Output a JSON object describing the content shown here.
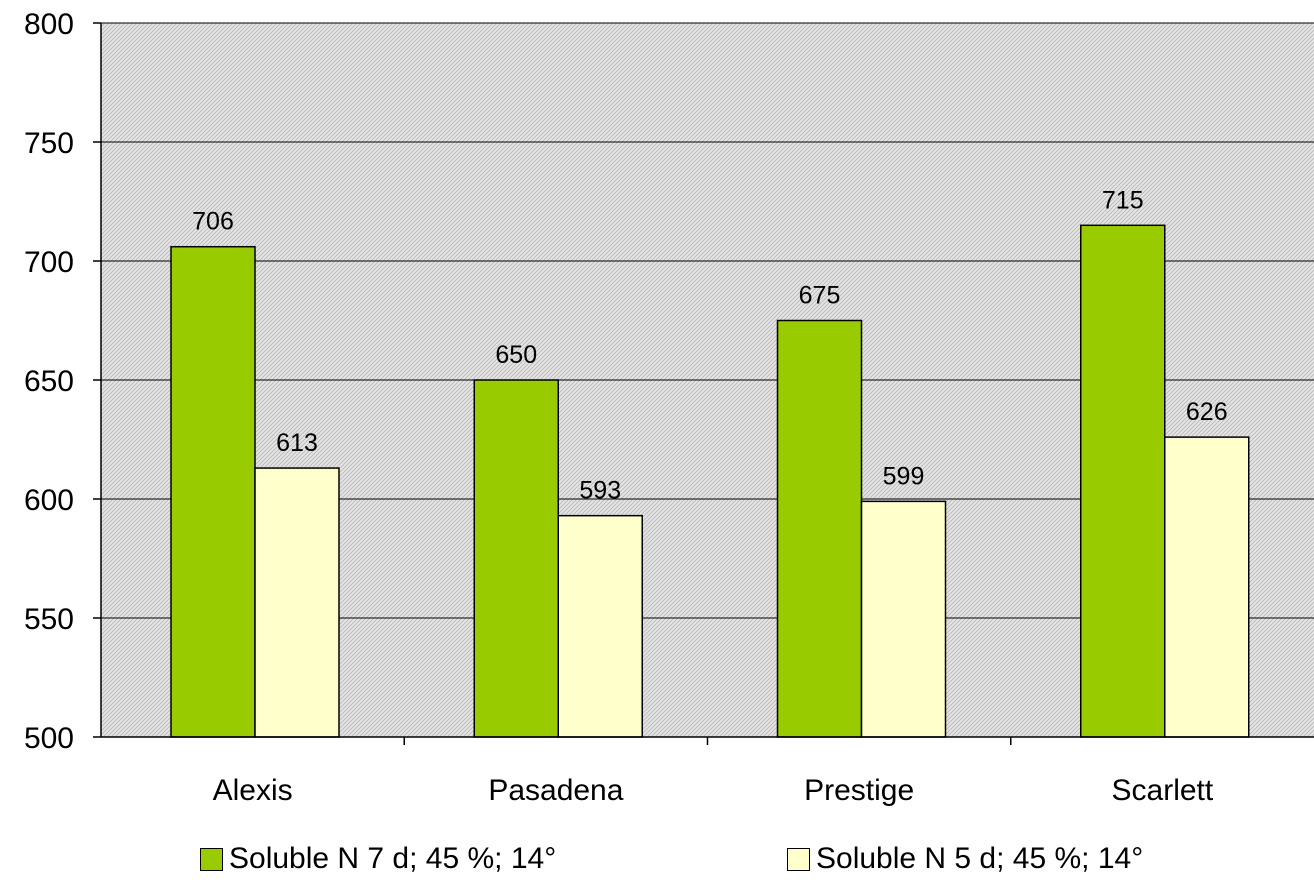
{
  "chart_data": {
    "type": "bar",
    "title": "",
    "xlabel": "",
    "ylabel": "",
    "categories": [
      "Alexis",
      "Pasadena",
      "Prestige",
      "Scarlett"
    ],
    "series": [
      {
        "name": "Soluble N  7 d; 45 %; 14°",
        "values": [
          706,
          650,
          675,
          715
        ],
        "color": "#99cc00"
      },
      {
        "name": "Soluble N  5 d; 45 %; 14°",
        "values": [
          613,
          593,
          599,
          626
        ],
        "color": "#ffffcc"
      }
    ],
    "ylim": [
      500,
      800
    ],
    "yticks": [
      500,
      550,
      600,
      650,
      700,
      750,
      800
    ],
    "grid": true,
    "plot_background": "hatched light gray",
    "data_labels": true,
    "legend_position": "bottom"
  }
}
